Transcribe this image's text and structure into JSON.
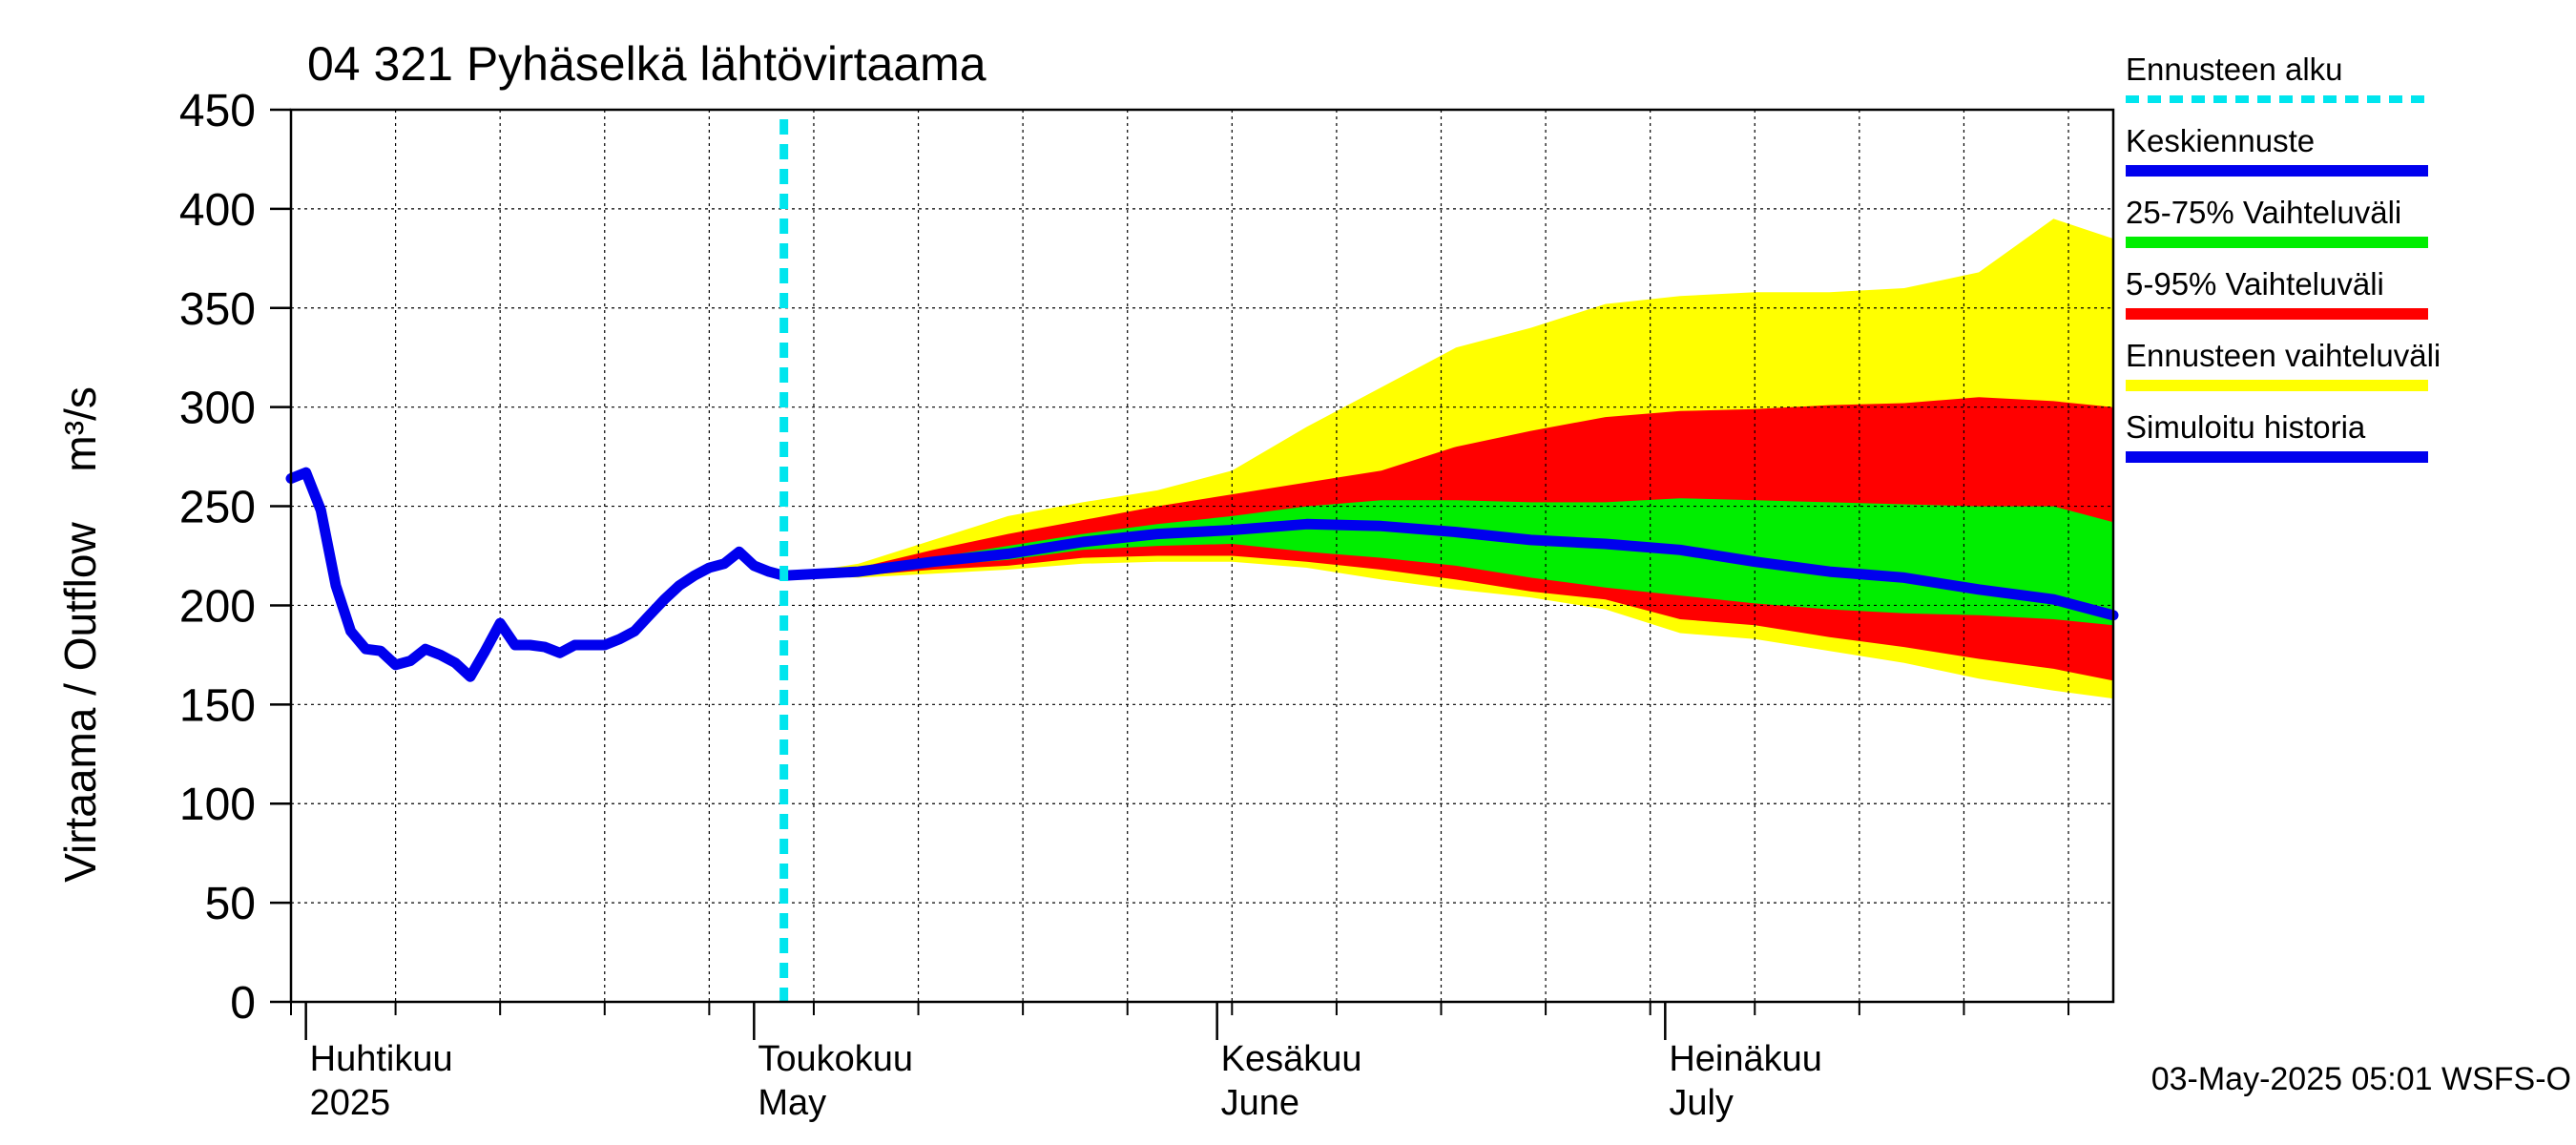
{
  "chart_data": {
    "type": "area",
    "title": "04 321 Pyhäselkä lähtövirtaama",
    "ylabel": "Virtaama / Outflow",
    "yunit": "m³/s",
    "ylim": [
      0,
      450
    ],
    "yticks": [
      0,
      50,
      100,
      150,
      200,
      250,
      300,
      350,
      400,
      450
    ],
    "xlim": [
      "2025-03-31",
      "2025-07-31"
    ],
    "month_labels": [
      {
        "fi": "Huhtikuu",
        "en": "2025",
        "date": "2025-04-01"
      },
      {
        "fi": "Toukokuu",
        "en": "May",
        "date": "2025-05-01"
      },
      {
        "fi": "Kesäkuu",
        "en": "June",
        "date": "2025-06-01"
      },
      {
        "fi": "Heinäkuu",
        "en": "July",
        "date": "2025-07-01"
      }
    ],
    "grid": true,
    "legend_position": "right",
    "forecast_start": "2025-05-03",
    "colors": {
      "forecast_start": "#00e5ee",
      "median": "#0000ee",
      "band_25_75": "#00ee00",
      "band_5_95": "#ff0000",
      "band_full": "#ffff00",
      "history": "#0000ee"
    },
    "legend": [
      {
        "key": "forecast_start",
        "label": "Ennusteen alku",
        "style": "dashed"
      },
      {
        "key": "median",
        "label": "Keskiennuste",
        "style": "solid"
      },
      {
        "key": "band_25_75",
        "label": "25-75% Vaihteluväli",
        "style": "solid"
      },
      {
        "key": "band_5_95",
        "label": "5-95% Vaihteluväli",
        "style": "solid"
      },
      {
        "key": "band_full",
        "label": "Ennusteen vaihteluväli",
        "style": "solid"
      },
      {
        "key": "history",
        "label": "Simuloitu historia",
        "style": "solid"
      }
    ],
    "history": {
      "name": "Simuloitu historia",
      "x": [
        "2025-03-31",
        "2025-04-01",
        "2025-04-02",
        "2025-04-03",
        "2025-04-04",
        "2025-04-05",
        "2025-04-06",
        "2025-04-07",
        "2025-04-08",
        "2025-04-09",
        "2025-04-10",
        "2025-04-11",
        "2025-04-12",
        "2025-04-13",
        "2025-04-14",
        "2025-04-15",
        "2025-04-16",
        "2025-04-17",
        "2025-04-18",
        "2025-04-19",
        "2025-04-20",
        "2025-04-21",
        "2025-04-22",
        "2025-04-23",
        "2025-04-24",
        "2025-04-25",
        "2025-04-26",
        "2025-04-27",
        "2025-04-28",
        "2025-04-29",
        "2025-04-30",
        "2025-05-01",
        "2025-05-02",
        "2025-05-03"
      ],
      "values": [
        264,
        267,
        248,
        210,
        187,
        178,
        177,
        170,
        172,
        178,
        175,
        171,
        164,
        177,
        191,
        180,
        180,
        179,
        176,
        180,
        180,
        180,
        183,
        187,
        195,
        203,
        210,
        215,
        219,
        221,
        227,
        220,
        217,
        215
      ]
    },
    "forecast": {
      "x": [
        "2025-05-03",
        "2025-05-08",
        "2025-05-13",
        "2025-05-18",
        "2025-05-23",
        "2025-05-28",
        "2025-06-02",
        "2025-06-07",
        "2025-06-12",
        "2025-06-17",
        "2025-06-22",
        "2025-06-27",
        "2025-07-02",
        "2025-07-07",
        "2025-07-12",
        "2025-07-17",
        "2025-07-22",
        "2025-07-27",
        "2025-07-31"
      ],
      "median": [
        215,
        217,
        222,
        226,
        232,
        236,
        238,
        241,
        240,
        237,
        233,
        231,
        228,
        222,
        217,
        214,
        208,
        203,
        195
      ],
      "p25": [
        215,
        216,
        220,
        223,
        228,
        230,
        231,
        227,
        224,
        220,
        214,
        209,
        205,
        201,
        198,
        196,
        195,
        193,
        190
      ],
      "p75": [
        215,
        218,
        224,
        230,
        236,
        241,
        245,
        250,
        253,
        253,
        252,
        252,
        254,
        253,
        252,
        251,
        250,
        250,
        242
      ],
      "p5": [
        215,
        215,
        218,
        220,
        224,
        225,
        225,
        222,
        218,
        213,
        207,
        203,
        193,
        190,
        184,
        179,
        173,
        168,
        162
      ],
      "p95": [
        215,
        219,
        228,
        236,
        243,
        250,
        256,
        262,
        268,
        280,
        288,
        295,
        298,
        299,
        301,
        302,
        305,
        303,
        300
      ],
      "min": [
        215,
        214,
        216,
        218,
        221,
        222,
        222,
        219,
        213,
        208,
        204,
        198,
        186,
        183,
        177,
        171,
        163,
        157,
        153
      ],
      "max": [
        215,
        221,
        233,
        245,
        252,
        258,
        268,
        290,
        310,
        330,
        340,
        352,
        356,
        358,
        358,
        360,
        368,
        395,
        385
      ]
    },
    "timestamp": "03-May-2025 05:01 WSFS-O"
  }
}
